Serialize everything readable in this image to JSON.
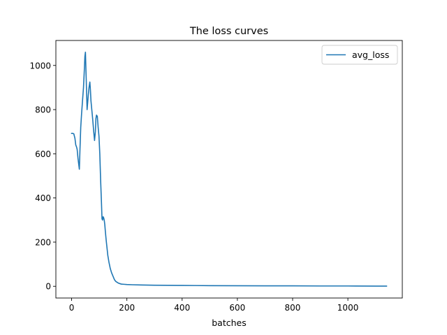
{
  "chart_data": {
    "type": "line",
    "title": "The loss curves",
    "xlabel": "batches",
    "ylabel": "",
    "xlim": [
      -57,
      1197
    ],
    "ylim": [
      -53,
      1113
    ],
    "xticks": [
      0,
      200,
      400,
      600,
      800,
      1000
    ],
    "yticks": [
      0,
      200,
      400,
      600,
      800,
      1000
    ],
    "grid": false,
    "legend_position": "upper right",
    "series": [
      {
        "name": "avg_loss",
        "color": "#1f77b4",
        "x": [
          0,
          5,
          8,
          12,
          15,
          18,
          20,
          23,
          25,
          28,
          30,
          33,
          36,
          40,
          43,
          46,
          48,
          50,
          53,
          56,
          58,
          60,
          63,
          66,
          68,
          70,
          73,
          76,
          80,
          83,
          86,
          88,
          90,
          93,
          96,
          99,
          102,
          105,
          108,
          110,
          112,
          114,
          116,
          118,
          120,
          122,
          125,
          128,
          131,
          135,
          140,
          145,
          150,
          155,
          160,
          165,
          170,
          175,
          180,
          190,
          200,
          220,
          250,
          300,
          350,
          400,
          450,
          500,
          600,
          700,
          800,
          900,
          1000,
          1100,
          1140
        ],
        "y": [
          692,
          692,
          690,
          670,
          640,
          630,
          620,
          580,
          560,
          530,
          610,
          720,
          780,
          850,
          900,
          980,
          1040,
          1060,
          930,
          800,
          830,
          860,
          900,
          925,
          890,
          840,
          800,
          760,
          700,
          660,
          700,
          760,
          775,
          770,
          720,
          680,
          600,
          480,
          380,
          305,
          300,
          315,
          310,
          300,
          280,
          250,
          210,
          175,
          140,
          110,
          80,
          60,
          45,
          30,
          22,
          18,
          14,
          12,
          10,
          9,
          8,
          7,
          6,
          5,
          4.5,
          4,
          3.5,
          3,
          2.5,
          2,
          2,
          1.5,
          1.5,
          1,
          1
        ]
      }
    ]
  }
}
